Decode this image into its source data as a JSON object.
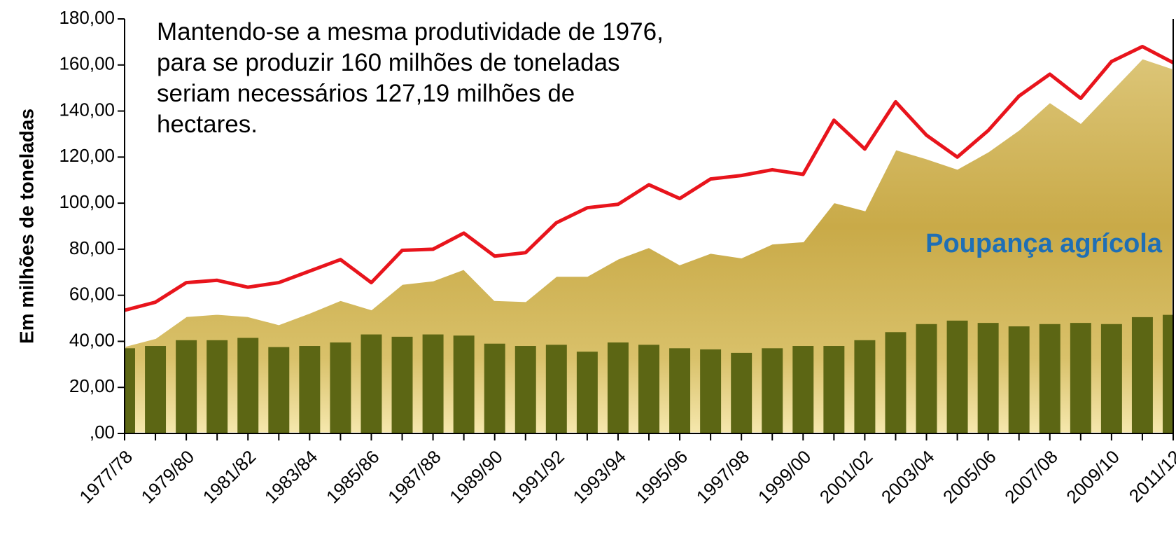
{
  "chart_data": {
    "type": "bar",
    "y_label": "Em milhões de toneladas",
    "annotation": [
      "Mantendo-se a mesma produtividade de 1976,",
      "para se produzir 160 milhões de toneladas",
      "seriam  necessários 127,19 milhões de",
      "hectares."
    ],
    "area_label": "Poupança agrícola",
    "categories": [
      "1977/78",
      null,
      "1979/80",
      null,
      "1981/82",
      null,
      "1983/84",
      null,
      "1985/86",
      null,
      "1987/88",
      null,
      "1989/90",
      null,
      "1991/92",
      null,
      "1993/94",
      null,
      "1995/96",
      null,
      "1997/98",
      null,
      "1999/00",
      null,
      "2001/02",
      null,
      "2003/04",
      null,
      "2005/06",
      null,
      "2007/08",
      null,
      "2009/10",
      null,
      "2011/12"
    ],
    "series": [
      {
        "type": "area",
        "color": "#c9a948",
        "values": [
          38,
          41.5,
          51,
          52,
          51,
          47.5,
          52.5,
          58,
          54,
          65,
          66.5,
          71.5,
          58,
          57.5,
          68.5,
          68.5,
          76,
          81,
          73.5,
          78.5,
          76.5,
          82.5,
          83.5,
          100.5,
          97,
          123.5,
          119.5,
          115,
          122.5,
          132,
          144,
          135,
          149,
          163,
          158.5
        ]
      },
      {
        "type": "bar",
        "color": "#5c6614",
        "values": [
          37,
          38,
          40.5,
          40.5,
          41.5,
          37.5,
          38,
          39.5,
          43,
          42,
          43,
          42.5,
          39,
          38,
          38.5,
          35.5,
          39.5,
          38.5,
          37,
          36.5,
          35,
          37,
          38,
          38,
          40.5,
          44,
          47.5,
          49,
          48,
          46.5,
          47.5,
          48,
          47.5,
          50.5,
          51.5
        ]
      },
      {
        "type": "line",
        "color": "#e8141c",
        "values": [
          53.5,
          57,
          65.5,
          66.5,
          63.5,
          65.5,
          70.5,
          75.5,
          65.5,
          79.5,
          80,
          87,
          77,
          78.5,
          91.5,
          98,
          99.5,
          108,
          102,
          110.5,
          112,
          114.5,
          112.5,
          136,
          123.5,
          144,
          129.5,
          120,
          131.5,
          146.5,
          156,
          145.5,
          161.5,
          168,
          161
        ]
      }
    ],
    "ylim": [
      0,
      180
    ],
    "yticks": [
      {
        "value": 0,
        "label": ",00"
      },
      {
        "value": 20,
        "label": "20,00"
      },
      {
        "value": 40,
        "label": "40,00"
      },
      {
        "value": 60,
        "label": "60,00"
      },
      {
        "value": 80,
        "label": "80,00"
      },
      {
        "value": 100,
        "label": "100,00"
      },
      {
        "value": 120,
        "label": "120,00"
      },
      {
        "value": 140,
        "label": "140,00"
      },
      {
        "value": 160,
        "label": "160,00"
      },
      {
        "value": 180,
        "label": "180,00"
      }
    ]
  }
}
